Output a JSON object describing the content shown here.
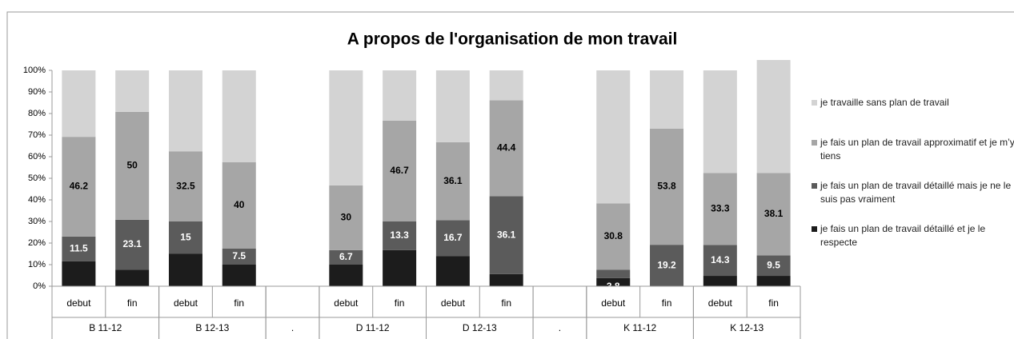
{
  "chart_data": {
    "type": "stacked_bar",
    "title": "A propos de l'organisation de mon travail",
    "categories": [
      "debut",
      "fin",
      "debut",
      "fin",
      null,
      "debut",
      "fin",
      "debut",
      "fin",
      null,
      "debut",
      "fin",
      "debut",
      "fin"
    ],
    "groups": [
      "B 11-12",
      "B 12-13",
      ".",
      "D 11-12",
      "D 12-13",
      ".",
      "K 11-12",
      "K 12-13"
    ],
    "series": [
      {
        "name": "je fais un plan de travail détaillé et je le respecte",
        "color": "#1c1c1c",
        "show_labels": false,
        "values": [
          11.5,
          7.7,
          15,
          10,
          null,
          10,
          16.7,
          13.9,
          5.6,
          null,
          3.8,
          0,
          4.8,
          4.8
        ]
      },
      {
        "name": "je fais un plan de travail détaillé mais je ne le suis pas vraiment",
        "color": "#5b5b5b",
        "show_labels": true,
        "label_color": "#ffffff",
        "values": [
          11.5,
          23.1,
          15,
          7.5,
          null,
          6.7,
          13.3,
          16.7,
          36.1,
          null,
          3.8,
          19.2,
          14.3,
          9.5
        ]
      },
      {
        "name": "je fais un plan de travail approximatif et je m’y tiens",
        "color": "#a6a6a6",
        "show_labels": true,
        "label_color": "#000000",
        "values": [
          46.2,
          50,
          32.5,
          40,
          null,
          30,
          46.7,
          36.1,
          44.4,
          null,
          30.8,
          53.8,
          33.3,
          38.1
        ]
      },
      {
        "name": "je travaille sans plan de travail",
        "color": "#d3d3d3",
        "show_labels": false,
        "values": [
          30.8,
          19.2,
          37.5,
          42.5,
          null,
          53.3,
          23.3,
          33.3,
          13.9,
          null,
          61.6,
          27,
          47.6,
          52.4
        ]
      }
    ],
    "ylim": [
      0,
      100
    ],
    "yticks": [
      {
        "value": 0,
        "label": "0%"
      },
      {
        "value": 10,
        "label": "10%"
      },
      {
        "value": 20,
        "label": "20%"
      },
      {
        "value": 30,
        "label": "30%"
      },
      {
        "value": 40,
        "label": "40%"
      },
      {
        "value": 50,
        "label": "50%"
      },
      {
        "value": 60,
        "label": "60%"
      },
      {
        "value": 70,
        "label": "70%"
      },
      {
        "value": 80,
        "label": "80%"
      },
      {
        "value": 90,
        "label": "90%"
      },
      {
        "value": 100,
        "label": "100%"
      }
    ],
    "legend": "right"
  }
}
